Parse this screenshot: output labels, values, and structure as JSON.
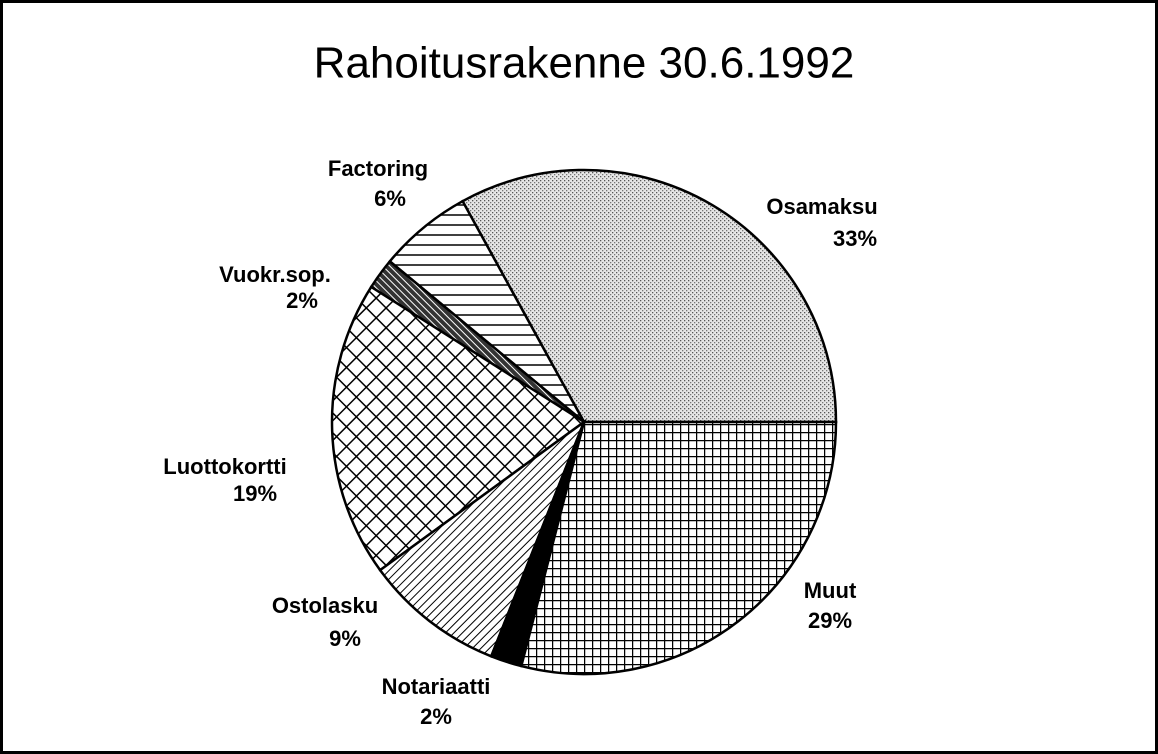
{
  "chart_data": {
    "type": "pie",
    "title": "Rahoitusrakenne 30.6.1992",
    "categories": [
      "Osamaksu",
      "Factoring",
      "Vuokr.sop.",
      "Luottokortti",
      "Ostolasku",
      "Notariaatti",
      "Muut"
    ],
    "values": [
      33,
      6,
      2,
      19,
      9,
      2,
      29
    ],
    "value_labels": [
      "33%",
      "6%",
      "2%",
      "19%",
      "9%",
      "2%",
      "29%"
    ]
  }
}
